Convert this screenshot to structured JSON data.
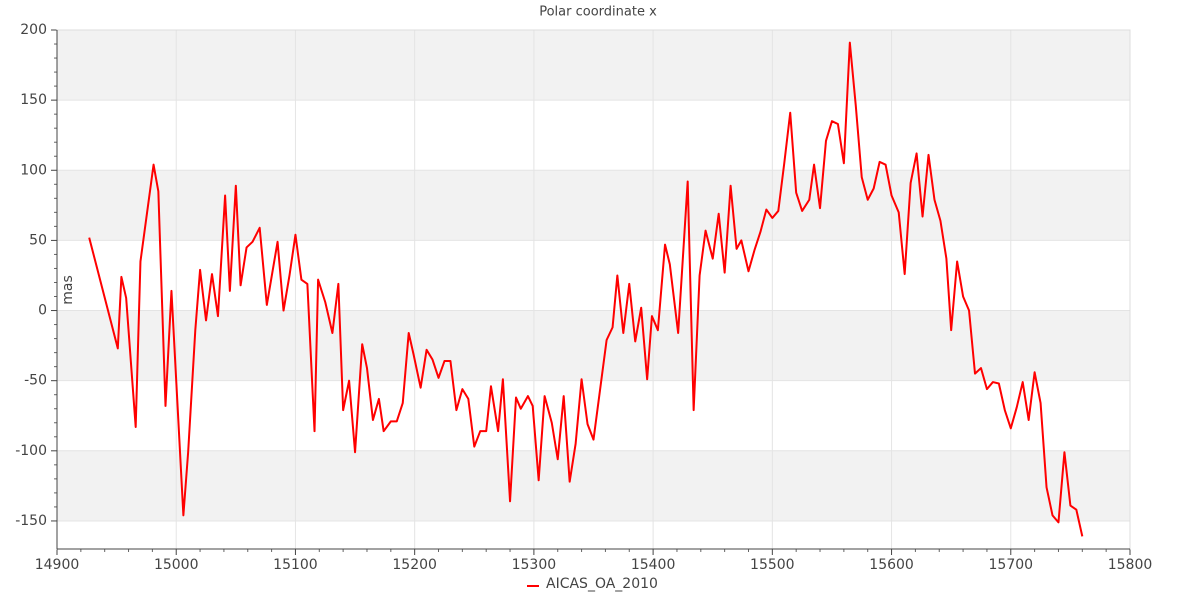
{
  "chart_data": {
    "type": "line",
    "title": "Polar coordinate x",
    "y_label": "mas",
    "xlim": [
      14900,
      15800
    ],
    "xticks": [
      14900,
      15000,
      15100,
      15200,
      15300,
      15400,
      15500,
      15600,
      15700,
      15800
    ],
    "ylim": [
      -170,
      200
    ],
    "yticks": [
      -150,
      -100,
      -50,
      0,
      50,
      100,
      150,
      200
    ],
    "grid": true,
    "legend": "bottom",
    "x": [
      14927,
      14951,
      14954,
      14958,
      14966,
      14970,
      14981,
      14985,
      14991,
      14996,
      15006,
      15010,
      15016,
      15020,
      15025,
      15030,
      15035,
      15041,
      15045,
      15050,
      15054,
      15059,
      15064,
      15070,
      15076,
      15085,
      15090,
      15095,
      15100,
      15105,
      15110,
      15116,
      15119,
      15125,
      15131,
      15136,
      15140,
      15145,
      15150,
      15156,
      15160,
      15165,
      15170,
      15174,
      15180,
      15185,
      15190,
      15195,
      15199,
      15205,
      15210,
      15215,
      15220,
      15225,
      15230,
      15235,
      15240,
      15245,
      15250,
      15255,
      15260,
      15264,
      15270,
      15274,
      15280,
      15285,
      15289,
      15295,
      15299,
      15304,
      15309,
      15315,
      15320,
      15325,
      15330,
      15335,
      15340,
      15345,
      15350,
      15361,
      15366,
      15370,
      15375,
      15380,
      15385,
      15390,
      15395,
      15399,
      15404,
      15410,
      15414,
      15421,
      15429,
      15434,
      15439,
      15444,
      15450,
      15455,
      15460,
      15465,
      15470,
      15474,
      15480,
      15485,
      15490,
      15495,
      15500,
      15505,
      15510,
      15515,
      15520,
      15525,
      15531,
      15535,
      15540,
      15545,
      15550,
      15555,
      15560,
      15565,
      15570,
      15575,
      15580,
      15585,
      15590,
      15595,
      15600,
      15606,
      15611,
      15616,
      15621,
      15626,
      15631,
      15636,
      15641,
      15646,
      15650,
      15655,
      15660,
      15665,
      15670,
      15675,
      15680,
      15685,
      15690,
      15695,
      15700,
      15705,
      15710,
      15715,
      15720,
      15725,
      15730,
      15735,
      15740,
      15745,
      15750,
      15755,
      15760
    ],
    "series": [
      {
        "name": "AICAS_OA_2010",
        "color": "#ff0000",
        "values": [
          52,
          -27,
          24,
          9,
          -83,
          35,
          104,
          85,
          -68,
          14,
          -146,
          -101,
          -14,
          29,
          -7,
          26,
          -4,
          82,
          14,
          89,
          18,
          45,
          49,
          59,
          4,
          49,
          0,
          25,
          54,
          22,
          19,
          -86,
          22,
          6,
          -16,
          19,
          -71,
          -50,
          -101,
          -24,
          -41,
          -78,
          -63,
          -86,
          -79,
          -79,
          -66,
          -16,
          -31,
          -55,
          -28,
          -35,
          -48,
          -36,
          -36,
          -71,
          -56,
          -63,
          -97,
          -86,
          -86,
          -54,
          -86,
          -49,
          -136,
          -62,
          -70,
          -61,
          -68,
          -121,
          -61,
          -80,
          -106,
          -61,
          -122,
          -95,
          -49,
          -81,
          -92,
          -21,
          -12,
          25,
          -16,
          19,
          -22,
          2,
          -49,
          -4,
          -14,
          47,
          33,
          -16,
          92,
          -71,
          25,
          57,
          37,
          69,
          27,
          89,
          44,
          50,
          28,
          43,
          56,
          72,
          66,
          71,
          105,
          141,
          84,
          71,
          79,
          104,
          73,
          121,
          135,
          133,
          105,
          191,
          146,
          95,
          79,
          87,
          106,
          104,
          82,
          70,
          26,
          91,
          112,
          67,
          111,
          79,
          64,
          37,
          -14,
          35,
          10,
          0,
          -45,
          -41,
          -56,
          -51,
          -52,
          -71,
          -84,
          -69,
          -51,
          -78,
          -44,
          -66,
          -126,
          -146,
          -151,
          -101,
          -139,
          -142,
          -161
        ]
      }
    ]
  }
}
